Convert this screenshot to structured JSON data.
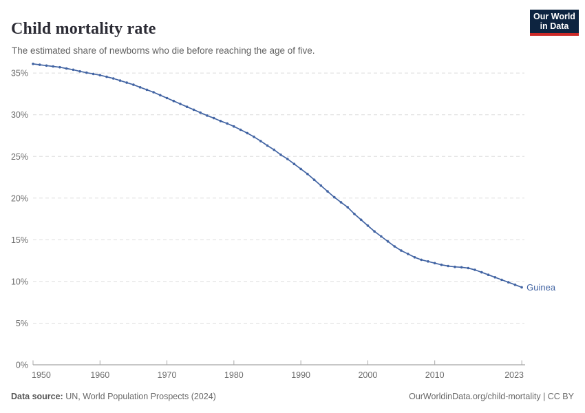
{
  "header": {
    "title": "Child mortality rate",
    "subtitle": "The estimated share of newborns who die before reaching the age of five.",
    "logo": {
      "line1": "Our World",
      "line2": "in Data"
    }
  },
  "colors": {
    "line": "#4264a3",
    "logo_bg": "#0d2440",
    "logo_red": "#cc2a28",
    "grid": "#dcdcdc",
    "axis": "#8f8f8f",
    "tick_label": "#6c6c6c"
  },
  "chart_data": {
    "type": "line",
    "title": "Child mortality rate",
    "subtitle": "The estimated share of newborns who die before reaching the age of five.",
    "xlabel": "",
    "ylabel": "",
    "grid": "horizontal-dashed",
    "legend": "end-of-line-label",
    "xlim": [
      1950,
      2023.5
    ],
    "ylim": [
      0,
      36.5
    ],
    "x_ticks": [
      1950,
      1960,
      1970,
      1980,
      1990,
      2000,
      2010,
      2023
    ],
    "y_ticks": [
      0,
      5,
      10,
      15,
      20,
      25,
      30,
      35
    ],
    "y_tick_suffix": "%",
    "x_start": 1950,
    "x_end": 2023,
    "series": [
      {
        "name": "Guinea",
        "values": [
          36.1,
          36.0,
          35.9,
          35.8,
          35.7,
          35.55,
          35.4,
          35.2,
          35.05,
          34.9,
          34.75,
          34.55,
          34.35,
          34.1,
          33.85,
          33.6,
          33.3,
          33.0,
          32.7,
          32.35,
          32.0,
          31.65,
          31.3,
          30.95,
          30.6,
          30.25,
          29.9,
          29.6,
          29.25,
          28.95,
          28.6,
          28.2,
          27.8,
          27.35,
          26.85,
          26.3,
          25.8,
          25.2,
          24.7,
          24.1,
          23.5,
          22.9,
          22.2,
          21.5,
          20.8,
          20.1,
          19.5,
          18.9,
          18.1,
          17.4,
          16.7,
          16.0,
          15.4,
          14.8,
          14.2,
          13.7,
          13.3,
          12.9,
          12.6,
          12.4,
          12.2,
          12.0,
          11.85,
          11.75,
          11.7,
          11.6,
          11.4,
          11.1,
          10.8,
          10.5,
          10.2,
          9.9,
          9.6,
          9.3
        ]
      }
    ]
  },
  "footer": {
    "source_label": "Data source:",
    "source_text": " UN, World Population Prospects (2024)",
    "credit": "OurWorldinData.org/child-mortality | CC BY"
  }
}
